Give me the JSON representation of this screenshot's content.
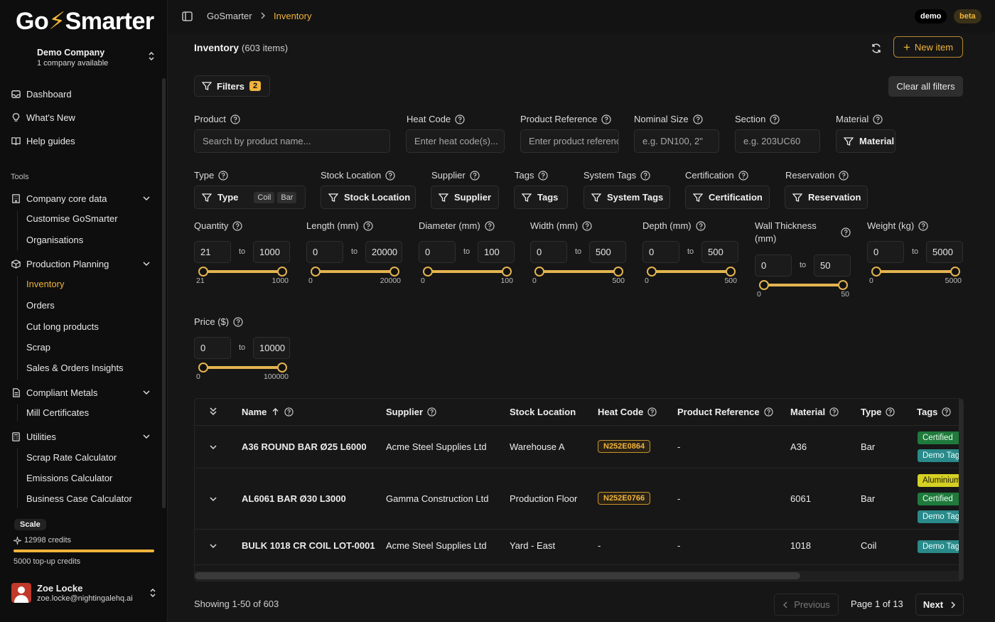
{
  "app": {
    "logo_pre": "Go",
    "logo_post": "Smarter"
  },
  "company": {
    "name": "Demo Company",
    "sub": "1 company available"
  },
  "nav": {
    "dashboard": "Dashboard",
    "whats_new": "What's New",
    "help_guides": "Help guides",
    "tools_label": "Tools",
    "company_core": "Company core data",
    "company_core_items": [
      "Customise GoSmarter",
      "Organisations"
    ],
    "production_planning": "Production Planning",
    "production_items": [
      "Inventory",
      "Orders",
      "Cut long products",
      "Scrap",
      "Sales & Orders Insights"
    ],
    "compliant_metals": "Compliant Metals",
    "compliant_items": [
      "Mill Certificates"
    ],
    "utilities": "Utilities",
    "utilities_items": [
      "Scrap Rate Calculator",
      "Emissions Calculator",
      "Business Case Calculator"
    ]
  },
  "plan": {
    "name": "Scale",
    "credits": "12998 credits",
    "topup": "5000 top-up credits",
    "credit_fill": 1.0
  },
  "user": {
    "name": "Zoe Locke",
    "email": "zoe.locke@nightingalehq.ai"
  },
  "topbar": {
    "crumb_root": "GoSmarter",
    "crumb_current": "Inventory",
    "badge_demo": "demo",
    "badge_beta": "beta"
  },
  "header": {
    "title": "Inventory",
    "count": "(603 items)",
    "new_item": "New item"
  },
  "filters": {
    "label": "Filters",
    "count": "2",
    "clear": "Clear all filters",
    "product": {
      "label": "Product",
      "placeholder": "Search by product name..."
    },
    "heat_code": {
      "label": "Heat Code",
      "placeholder": "Enter heat code(s)..."
    },
    "product_reference": {
      "label": "Product Reference",
      "placeholder": "Enter product reference"
    },
    "nominal_size": {
      "label": "Nominal Size",
      "placeholder": "e.g. DN100, 2\""
    },
    "section": {
      "label": "Section",
      "placeholder": "e.g. 203UC60"
    },
    "material": {
      "label": "Material",
      "button": "Material"
    },
    "type": {
      "label": "Type",
      "button": "Type",
      "chips": [
        "Coil",
        "Bar"
      ]
    },
    "stock_location": {
      "label": "Stock Location",
      "button": "Stock Location"
    },
    "supplier": {
      "label": "Supplier",
      "button": "Supplier"
    },
    "tags": {
      "label": "Tags",
      "button": "Tags"
    },
    "system_tags": {
      "label": "System Tags",
      "button": "System Tags"
    },
    "certification": {
      "label": "Certification",
      "button": "Certification"
    },
    "reservation": {
      "label": "Reservation",
      "button": "Reservation"
    },
    "to": "to",
    "ranges": {
      "quantity": {
        "label": "Quantity",
        "min": "21",
        "max": "1000",
        "smin": "21",
        "smax": "1000"
      },
      "length": {
        "label": "Length (mm)",
        "min": "0",
        "max": "20000",
        "smin": "0",
        "smax": "20000"
      },
      "diameter": {
        "label": "Diameter (mm)",
        "min": "0",
        "max": "100",
        "smin": "0",
        "smax": "100"
      },
      "width": {
        "label": "Width (mm)",
        "min": "0",
        "max": "500",
        "smin": "0",
        "smax": "500"
      },
      "depth": {
        "label": "Depth (mm)",
        "min": "0",
        "max": "500",
        "smin": "0",
        "smax": "500"
      },
      "wall": {
        "label1": "Wall Thickness",
        "label2": "(mm)",
        "min": "0",
        "max": "50",
        "smin": "0",
        "smax": "50"
      },
      "weight": {
        "label": "Weight (kg)",
        "min": "0",
        "max": "5000",
        "smin": "0",
        "smax": "5000"
      },
      "price": {
        "label": "Price ($)",
        "min": "0",
        "max": "10000",
        "smin": "0",
        "smax": "100000"
      }
    }
  },
  "table": {
    "columns": [
      "Name",
      "Supplier",
      "Stock Location",
      "Heat Code",
      "Product Reference",
      "Material",
      "Type",
      "Tags"
    ],
    "rows": [
      {
        "name": "A36 ROUND BAR Ø25 L6000",
        "supplier": "Acme Steel Supplies Ltd",
        "location": "Warehouse A",
        "heat": "N252E0864",
        "ref": "-",
        "material": "A36",
        "type": "Bar",
        "tags": [
          "Certified",
          "Demo Tag"
        ]
      },
      {
        "name": "AL6061 BAR Ø30 L3000",
        "supplier": "Gamma Construction Ltd",
        "location": "Production Floor",
        "heat": "N252E0766",
        "ref": "-",
        "material": "6061",
        "type": "Bar",
        "tags": [
          "Aluminium",
          "Certified",
          "Demo Tag"
        ]
      },
      {
        "name": "BULK 1018 CR COIL LOT-0001",
        "supplier": "Acme Steel Supplies Ltd",
        "location": "Yard - East",
        "heat": "-",
        "ref": "-",
        "material": "1018",
        "type": "Coil",
        "tags": [
          "Demo Tag"
        ]
      }
    ]
  },
  "pagination": {
    "showing": "Showing 1-50 of 603",
    "previous": "Previous",
    "page": "Page 1 of 13",
    "next": "Next"
  },
  "colors": {
    "accent": "#f0b43c",
    "background": "#161616",
    "sidebar": "#0e0e0e"
  }
}
